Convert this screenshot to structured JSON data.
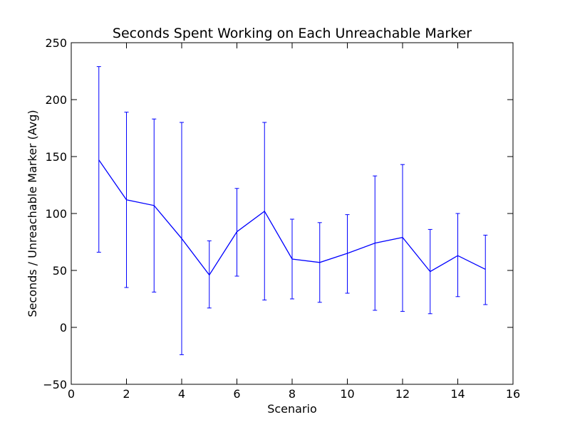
{
  "chart_data": {
    "type": "line",
    "title": "Seconds Spent Working on Each Unreachable Marker",
    "xlabel": "Scenario",
    "ylabel": "Seconds / Unreachable Marker (Avg)",
    "xlim": [
      0,
      16
    ],
    "ylim": [
      -50,
      250
    ],
    "xticks": [
      0,
      2,
      4,
      6,
      8,
      10,
      12,
      14,
      16
    ],
    "yticks": [
      -50,
      0,
      50,
      100,
      150,
      200,
      250
    ],
    "xtick_labels": [
      "0",
      "2",
      "4",
      "6",
      "8",
      "10",
      "12",
      "14",
      "16"
    ],
    "ytick_labels": [
      "−50",
      "0",
      "50",
      "100",
      "150",
      "200",
      "250"
    ],
    "grid": false,
    "line_color": "#0000ff",
    "series": [
      {
        "x": [
          1,
          2,
          3,
          4,
          5,
          6,
          7,
          8,
          9,
          10,
          11,
          12,
          13,
          14,
          15
        ],
        "values": [
          147,
          112,
          107,
          78,
          46,
          84,
          102,
          60,
          57,
          65,
          74,
          79,
          49,
          63,
          51
        ],
        "error_low": [
          66,
          35,
          31,
          -24,
          17,
          45,
          24,
          25,
          22,
          30,
          15,
          14,
          12,
          27,
          20
        ],
        "error_high": [
          229,
          189,
          183,
          180,
          76,
          122,
          180,
          95,
          92,
          99,
          133,
          143,
          86,
          100,
          81
        ]
      }
    ]
  }
}
